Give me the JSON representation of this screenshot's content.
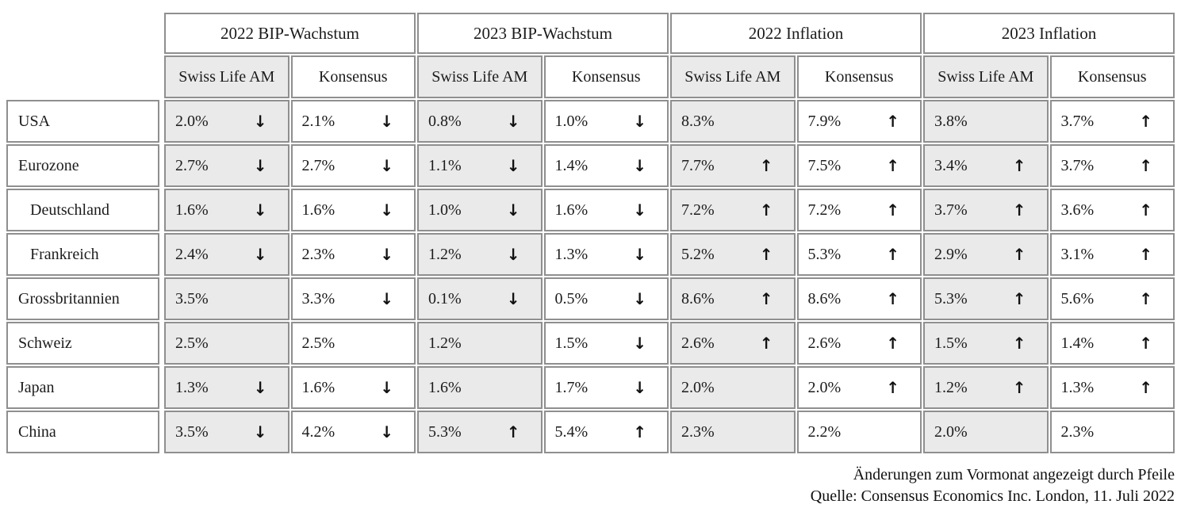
{
  "table": {
    "group_headers": [
      "2022 BIP-Wachstum",
      "2023 BIP-Wachstum",
      "2022 Inflation",
      "2023 Inflation"
    ],
    "subheaders": [
      "Swiss Life AM",
      "Konsensus"
    ],
    "rows": [
      {
        "label": "USA",
        "indent": false,
        "cells": [
          {
            "value": "2.0%",
            "arrow": "down"
          },
          {
            "value": "2.1%",
            "arrow": "down"
          },
          {
            "value": "0.8%",
            "arrow": "down"
          },
          {
            "value": "1.0%",
            "arrow": "down"
          },
          {
            "value": "8.3%",
            "arrow": ""
          },
          {
            "value": "7.9%",
            "arrow": "up"
          },
          {
            "value": "3.8%",
            "arrow": ""
          },
          {
            "value": "3.7%",
            "arrow": "up"
          }
        ]
      },
      {
        "label": "Eurozone",
        "indent": false,
        "cells": [
          {
            "value": "2.7%",
            "arrow": "down"
          },
          {
            "value": "2.7%",
            "arrow": "down"
          },
          {
            "value": "1.1%",
            "arrow": "down"
          },
          {
            "value": "1.4%",
            "arrow": "down"
          },
          {
            "value": "7.7%",
            "arrow": "up"
          },
          {
            "value": "7.5%",
            "arrow": "up"
          },
          {
            "value": "3.4%",
            "arrow": "up"
          },
          {
            "value": "3.7%",
            "arrow": "up"
          }
        ]
      },
      {
        "label": "Deutschland",
        "indent": true,
        "cells": [
          {
            "value": "1.6%",
            "arrow": "down"
          },
          {
            "value": "1.6%",
            "arrow": "down"
          },
          {
            "value": "1.0%",
            "arrow": "down"
          },
          {
            "value": "1.6%",
            "arrow": "down"
          },
          {
            "value": "7.2%",
            "arrow": "up"
          },
          {
            "value": "7.2%",
            "arrow": "up"
          },
          {
            "value": "3.7%",
            "arrow": "up"
          },
          {
            "value": "3.6%",
            "arrow": "up"
          }
        ]
      },
      {
        "label": "Frankreich",
        "indent": true,
        "cells": [
          {
            "value": "2.4%",
            "arrow": "down"
          },
          {
            "value": "2.3%",
            "arrow": "down"
          },
          {
            "value": "1.2%",
            "arrow": "down"
          },
          {
            "value": "1.3%",
            "arrow": "down"
          },
          {
            "value": "5.2%",
            "arrow": "up"
          },
          {
            "value": "5.3%",
            "arrow": "up"
          },
          {
            "value": "2.9%",
            "arrow": "up"
          },
          {
            "value": "3.1%",
            "arrow": "up"
          }
        ]
      },
      {
        "label": "Grossbritannien",
        "indent": false,
        "cells": [
          {
            "value": "3.5%",
            "arrow": ""
          },
          {
            "value": "3.3%",
            "arrow": "down"
          },
          {
            "value": "0.1%",
            "arrow": "down"
          },
          {
            "value": "0.5%",
            "arrow": "down"
          },
          {
            "value": "8.6%",
            "arrow": "up"
          },
          {
            "value": "8.6%",
            "arrow": "up"
          },
          {
            "value": "5.3%",
            "arrow": "up"
          },
          {
            "value": "5.6%",
            "arrow": "up"
          }
        ]
      },
      {
        "label": "Schweiz",
        "indent": false,
        "cells": [
          {
            "value": "2.5%",
            "arrow": ""
          },
          {
            "value": "2.5%",
            "arrow": ""
          },
          {
            "value": "1.2%",
            "arrow": ""
          },
          {
            "value": "1.5%",
            "arrow": "down"
          },
          {
            "value": "2.6%",
            "arrow": "up"
          },
          {
            "value": "2.6%",
            "arrow": "up"
          },
          {
            "value": "1.5%",
            "arrow": "up"
          },
          {
            "value": "1.4%",
            "arrow": "up"
          }
        ]
      },
      {
        "label": "Japan",
        "indent": false,
        "cells": [
          {
            "value": "1.3%",
            "arrow": "down"
          },
          {
            "value": "1.6%",
            "arrow": "down"
          },
          {
            "value": "1.6%",
            "arrow": ""
          },
          {
            "value": "1.7%",
            "arrow": "down"
          },
          {
            "value": "2.0%",
            "arrow": ""
          },
          {
            "value": "2.0%",
            "arrow": "up"
          },
          {
            "value": "1.2%",
            "arrow": "up"
          },
          {
            "value": "1.3%",
            "arrow": "up"
          }
        ]
      },
      {
        "label": "China",
        "indent": false,
        "cells": [
          {
            "value": "3.5%",
            "arrow": "down"
          },
          {
            "value": "4.2%",
            "arrow": "down"
          },
          {
            "value": "5.3%",
            "arrow": "up"
          },
          {
            "value": "5.4%",
            "arrow": "up"
          },
          {
            "value": "2.3%",
            "arrow": ""
          },
          {
            "value": "2.2%",
            "arrow": ""
          },
          {
            "value": "2.0%",
            "arrow": ""
          },
          {
            "value": "2.3%",
            "arrow": ""
          }
        ]
      }
    ]
  },
  "icons": {
    "up": "↑",
    "down": "↓"
  },
  "footer": {
    "line1": "Änderungen zum Vormonat angezeigt durch Pfeile",
    "line2": "Quelle: Consensus Economics Inc. London, 11. Juli 2022"
  },
  "colors": {
    "cell_fill_gray": "#eaeaea",
    "border_gray": "#8f8f8f",
    "text": "#1c1c1c"
  }
}
